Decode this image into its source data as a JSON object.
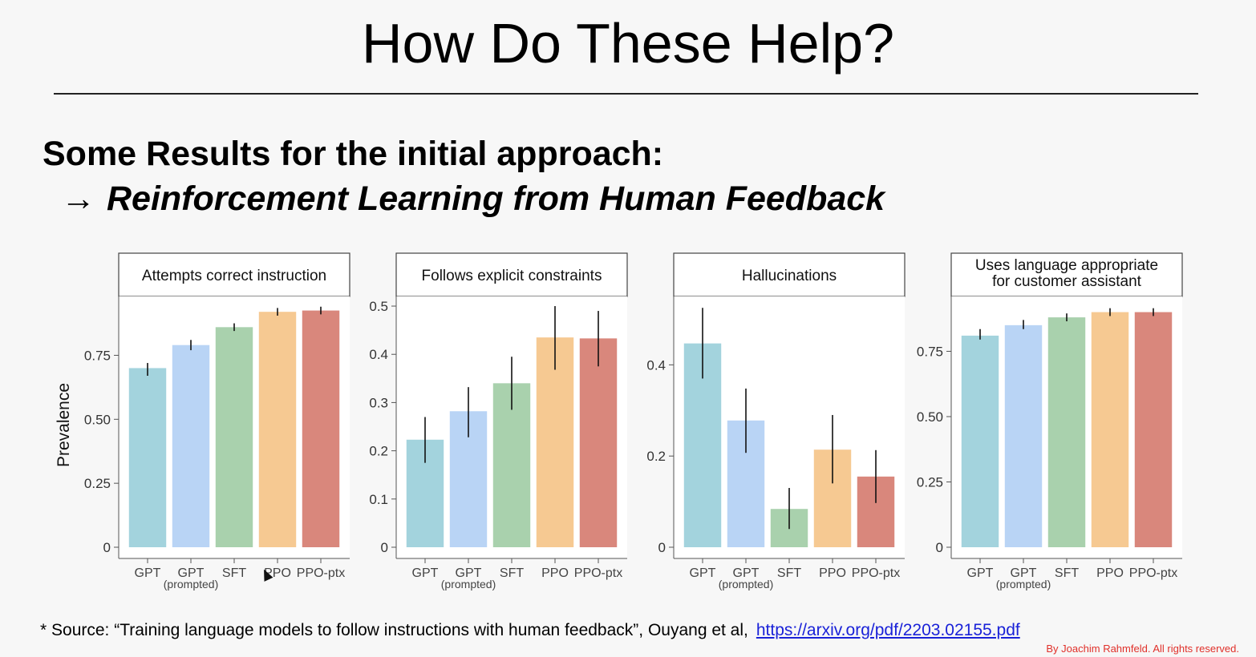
{
  "slide": {
    "title": "How Do These Help?",
    "subtitle": "Some Results for the initial approach:",
    "arrow": "→",
    "subtitle_emphasis": "Reinforcement Learning from Human Feedback",
    "footnote_text": "*  Source: “Training language models to follow instructions with human feedback”, Ouyang et al,",
    "footnote_link": "https://arxiv.org/pdf/2203.02155.pdf",
    "copyright": "By Joachim Rahmfeld. All rights reserved."
  },
  "colors": {
    "GPT": "#a3d3dd",
    "GPT (prompted)": "#b9d4f5",
    "SFT": "#a9d1ad",
    "PPO": "#f6c992",
    "PPO-ptx": "#d9877c"
  },
  "chart_data": [
    {
      "type": "bar",
      "title": "Attempts correct instruction",
      "ylabel": "Prevalence",
      "categories": [
        "GPT",
        "GPT (prompted)",
        "SFT",
        "PPO",
        "PPO-ptx"
      ],
      "tick_labels": [
        [
          "GPT"
        ],
        [
          "GPT",
          "(prompted)"
        ],
        [
          "SFT"
        ],
        [
          "PPO"
        ],
        [
          "PPO-ptx"
        ]
      ],
      "values": [
        0.7,
        0.79,
        0.86,
        0.92,
        0.925
      ],
      "error_low": [
        0.67,
        0.77,
        0.845,
        0.905,
        0.91
      ],
      "error_high": [
        0.72,
        0.81,
        0.875,
        0.935,
        0.94
      ],
      "ylim": [
        0,
        0.98
      ],
      "yticks": [
        0,
        0.25,
        0.5,
        0.75
      ],
      "ytick_labels": [
        "0",
        "0.25",
        "0.50",
        "0.75"
      ]
    },
    {
      "type": "bar",
      "title": "Follows explicit constraints",
      "ylabel": "",
      "categories": [
        "GPT",
        "GPT (prompted)",
        "SFT",
        "PPO",
        "PPO-ptx"
      ],
      "tick_labels": [
        [
          "GPT"
        ],
        [
          "GPT",
          "(prompted)"
        ],
        [
          "SFT"
        ],
        [
          "PPO"
        ],
        [
          "PPO-ptx"
        ]
      ],
      "values": [
        0.223,
        0.282,
        0.34,
        0.435,
        0.433
      ],
      "error_low": [
        0.175,
        0.228,
        0.285,
        0.368,
        0.375
      ],
      "error_high": [
        0.27,
        0.332,
        0.395,
        0.5,
        0.49
      ],
      "ylim": [
        0,
        0.52
      ],
      "yticks": [
        0,
        0.1,
        0.2,
        0.3,
        0.4,
        0.5
      ],
      "ytick_labels": [
        "0",
        "0.1",
        "0.2",
        "0.3",
        "0.4",
        "0.5"
      ]
    },
    {
      "type": "bar",
      "title": "Hallucinations",
      "ylabel": "",
      "categories": [
        "GPT",
        "GPT (prompted)",
        "SFT",
        "PPO",
        "PPO-ptx"
      ],
      "tick_labels": [
        [
          "GPT"
        ],
        [
          "GPT",
          "(prompted)"
        ],
        [
          "SFT"
        ],
        [
          "PPO"
        ],
        [
          "PPO-ptx"
        ]
      ],
      "values": [
        0.447,
        0.278,
        0.084,
        0.214,
        0.155
      ],
      "error_low": [
        0.37,
        0.207,
        0.04,
        0.14,
        0.097
      ],
      "error_high": [
        0.525,
        0.348,
        0.13,
        0.29,
        0.213
      ],
      "ylim": [
        0,
        0.55
      ],
      "yticks": [
        0,
        0.2,
        0.4
      ],
      "ytick_labels": [
        "0",
        "0.2",
        "0.4"
      ]
    },
    {
      "type": "bar",
      "title": "Uses language appropriate for customer assistant",
      "title_lines": [
        "Uses language appropriate",
        "for customer assistant"
      ],
      "ylabel": "",
      "categories": [
        "GPT",
        "GPT (prompted)",
        "SFT",
        "PPO",
        "PPO-ptx"
      ],
      "tick_labels": [
        [
          "GPT"
        ],
        [
          "GPT",
          "(prompted)"
        ],
        [
          "SFT"
        ],
        [
          "PPO"
        ],
        [
          "PPO-ptx"
        ]
      ],
      "values": [
        0.81,
        0.85,
        0.88,
        0.9,
        0.9
      ],
      "error_low": [
        0.795,
        0.835,
        0.865,
        0.885,
        0.885
      ],
      "error_high": [
        0.835,
        0.87,
        0.895,
        0.915,
        0.915
      ],
      "ylim": [
        0,
        0.96
      ],
      "yticks": [
        0,
        0.25,
        0.5,
        0.75
      ],
      "ytick_labels": [
        "0",
        "0.25",
        "0.50",
        "0.75"
      ]
    }
  ]
}
